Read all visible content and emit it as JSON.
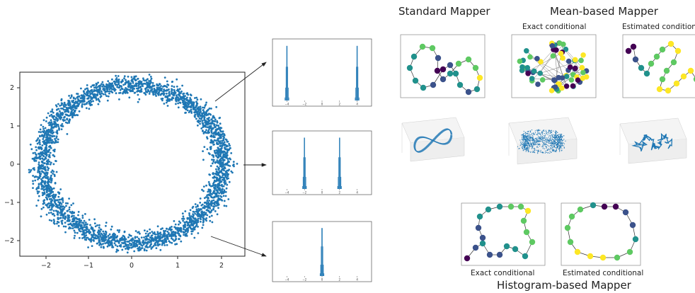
{
  "headings": {
    "standard": "Standard Mapper",
    "mean": "Mean-based Mapper",
    "histogram": "Histogram-based Mapper"
  },
  "subheadings": {
    "exact": "Exact conditional",
    "estimated": "Estimated conditional",
    "hist_exact": "Exact conditional",
    "hist_estimated": "Estimated conditional"
  },
  "scatter_ticks": {
    "x": [
      "−2",
      "−1",
      "0",
      "1",
      "2"
    ],
    "y": [
      "2",
      "1",
      "0",
      "−1",
      "−2"
    ]
  },
  "hist_ticks": [
    "−4",
    "−2",
    "0",
    "2",
    "4"
  ],
  "colors": {
    "scatter": "#1f77b4",
    "viridis": [
      "#440154",
      "#3b528b",
      "#21918c",
      "#5ec962",
      "#fde725"
    ]
  },
  "chart_data": [
    {
      "type": "scatter",
      "title": "",
      "xlabel": "",
      "ylabel": "",
      "description": "noisy ring of points, radius about 2 (ellipse rx≈2.0, ry≈2.0)",
      "xlim": [
        -2.5,
        2.5
      ],
      "ylim": [
        -2.35,
        2.35
      ],
      "ring": {
        "rx": 2.0,
        "ry": 2.0,
        "noise": 0.12,
        "n": 3200
      },
      "grid": false
    },
    {
      "type": "bar",
      "title": "",
      "series": [
        {
          "peaks": [
            -4,
            4
          ]
        }
      ],
      "xlim": [
        -5,
        5
      ]
    },
    {
      "type": "bar",
      "title": "",
      "series": [
        {
          "peaks": [
            -2,
            2
          ]
        }
      ],
      "xlim": [
        -5,
        5
      ]
    },
    {
      "type": "bar",
      "title": "",
      "series": [
        {
          "peaks": [
            0
          ]
        }
      ],
      "xlim": [
        -5,
        5
      ]
    }
  ]
}
